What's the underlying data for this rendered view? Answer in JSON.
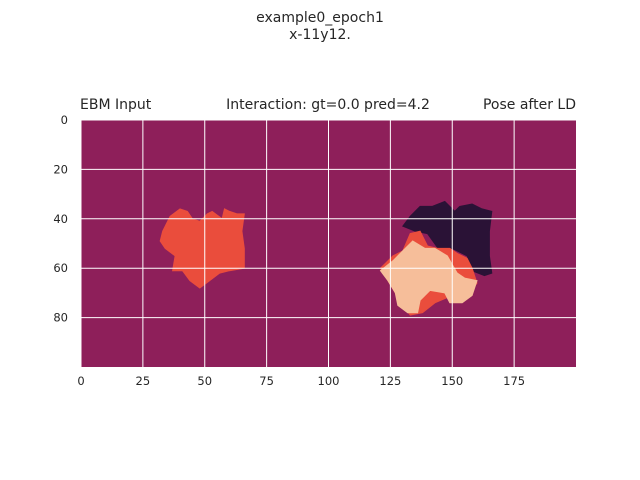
{
  "figure": {
    "suptitle_line1": "example0_epoch1",
    "suptitle_line2": "x-11y12."
  },
  "chart_data": {
    "type": "heatmap",
    "title_left": "EBM Input",
    "title_center": "Interaction: gt=0.0 pred=4.2",
    "title_right": "Pose after LD",
    "xlabel": "",
    "ylabel": "",
    "xlim": [
      0,
      200
    ],
    "ylim": [
      100,
      0
    ],
    "x_ticks": [
      0,
      25,
      50,
      75,
      100,
      125,
      150,
      175
    ],
    "y_ticks": [
      0,
      20,
      40,
      60,
      80
    ],
    "grid": true,
    "colors": {
      "background": "#8e1f5a",
      "receptor": "#ea4d3c",
      "ligand_initial": "#2a1236",
      "ligand_after_ld": "#f6be9a",
      "grid": "#ffffff"
    },
    "shapes": [
      {
        "name": "receptor-left",
        "fill": "#ea4d3c",
        "points": [
          [
            32,
            49
          ],
          [
            33,
            45
          ],
          [
            36,
            39
          ],
          [
            40,
            36
          ],
          [
            43,
            37
          ],
          [
            45,
            40
          ],
          [
            48,
            41
          ],
          [
            51,
            38
          ],
          [
            53,
            37
          ],
          [
            57,
            40
          ],
          [
            58,
            36
          ],
          [
            60,
            37
          ],
          [
            63,
            38
          ],
          [
            66,
            38
          ],
          [
            65,
            45
          ],
          [
            66,
            52
          ],
          [
            66,
            60
          ],
          [
            60,
            61
          ],
          [
            56,
            62
          ],
          [
            52,
            65
          ],
          [
            48,
            68
          ],
          [
            44,
            65
          ],
          [
            41,
            61
          ],
          [
            37,
            61
          ],
          [
            38,
            55
          ],
          [
            34,
            52
          ]
        ]
      },
      {
        "name": "ligand-initial",
        "fill": "#2a1236",
        "points": [
          [
            130,
            43
          ],
          [
            133,
            39
          ],
          [
            137,
            35
          ],
          [
            142,
            35
          ],
          [
            147,
            33
          ],
          [
            151,
            37
          ],
          [
            153,
            35
          ],
          [
            158,
            34
          ],
          [
            162,
            36
          ],
          [
            166,
            37
          ],
          [
            165,
            45
          ],
          [
            165,
            55
          ],
          [
            166,
            62
          ],
          [
            163,
            63
          ],
          [
            158,
            61
          ],
          [
            156,
            55
          ],
          [
            150,
            52
          ],
          [
            145,
            53
          ],
          [
            140,
            46
          ],
          [
            135,
            45
          ]
        ]
      },
      {
        "name": "receptor-right",
        "fill": "#ea4d3c",
        "points": [
          [
            121,
            60
          ],
          [
            126,
            55
          ],
          [
            130,
            53
          ],
          [
            133,
            46
          ],
          [
            137,
            45
          ],
          [
            140,
            51
          ],
          [
            144,
            52
          ],
          [
            149,
            52
          ],
          [
            152,
            54
          ],
          [
            156,
            56
          ],
          [
            158,
            60
          ],
          [
            160,
            66
          ],
          [
            157,
            70
          ],
          [
            150,
            71
          ],
          [
            143,
            74
          ],
          [
            138,
            78
          ],
          [
            133,
            79
          ],
          [
            130,
            75
          ],
          [
            127,
            70
          ],
          [
            124,
            65
          ]
        ]
      },
      {
        "name": "ligand-after-ld",
        "fill": "#f6be9a",
        "points": [
          [
            121,
            61
          ],
          [
            126,
            57
          ],
          [
            130,
            53
          ],
          [
            134,
            49
          ],
          [
            139,
            52
          ],
          [
            143,
            52
          ],
          [
            148,
            55
          ],
          [
            152,
            62
          ],
          [
            155,
            64
          ],
          [
            160,
            65
          ],
          [
            158,
            71
          ],
          [
            154,
            74
          ],
          [
            149,
            74
          ],
          [
            147,
            70
          ],
          [
            141,
            69
          ],
          [
            137,
            73
          ],
          [
            136,
            78
          ],
          [
            132,
            78
          ],
          [
            128,
            75
          ],
          [
            127,
            70
          ],
          [
            124,
            65
          ]
        ]
      }
    ]
  }
}
